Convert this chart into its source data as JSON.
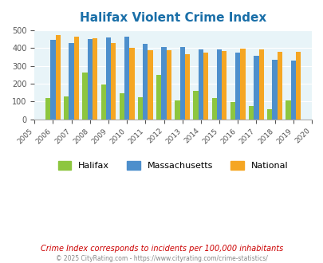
{
  "title": "Halifax Violent Crime Index",
  "years": [
    2005,
    2006,
    2007,
    2008,
    2009,
    2010,
    2011,
    2012,
    2013,
    2014,
    2015,
    2016,
    2017,
    2018,
    2019,
    2020
  ],
  "halifax": [
    null,
    120,
    130,
    262,
    197,
    145,
    122,
    250,
    108,
    160,
    120,
    95,
    76,
    55,
    105,
    null
  ],
  "massachusetts": [
    null,
    447,
    430,
    450,
    458,
    466,
    426,
    405,
    405,
    393,
    393,
    376,
    356,
    335,
    328,
    null
  ],
  "national": [
    null,
    473,
    465,
    454,
    430,
    404,
    387,
    387,
    365,
    375,
    386,
    397,
    394,
    381,
    379,
    null
  ],
  "halifax_color": "#8dc63f",
  "mass_color": "#4d8fcc",
  "national_color": "#f5a623",
  "bg_color": "#e8f4f8",
  "ylim": [
    0,
    500
  ],
  "yticks": [
    0,
    100,
    200,
    300,
    400,
    500
  ],
  "subtitle": "Crime Index corresponds to incidents per 100,000 inhabitants",
  "footer": "© 2025 CityRating.com - https://www.cityrating.com/crime-statistics/",
  "title_color": "#1a6fa8",
  "subtitle_color": "#cc0000",
  "footer_color": "#888888"
}
